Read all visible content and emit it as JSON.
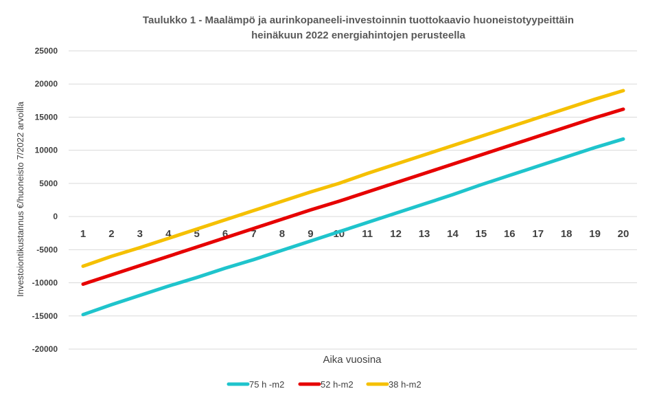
{
  "chart_data": {
    "type": "line",
    "title_line1": "Taulukko 1 - Maalämpö ja aurinkopaneeli-investoinnin tuottokaavio huoneistotyypeittäin",
    "title_line2": "heinäkuun 2022 energiahintojen perusteella",
    "xlabel": "Aika vuosina",
    "ylabel": "Investoiontikustannus €/huoneisto  7/2022 arvoilla",
    "ylim": [
      -20000,
      25000
    ],
    "yticks": [
      25000,
      20000,
      15000,
      10000,
      5000,
      0,
      -5000,
      -10000,
      -15000,
      -20000
    ],
    "x": [
      1,
      2,
      3,
      4,
      5,
      6,
      7,
      8,
      9,
      10,
      11,
      12,
      13,
      14,
      15,
      16,
      17,
      18,
      19,
      20
    ],
    "grid": true,
    "legend_position": "bottom",
    "series": [
      {
        "name": "75 h -m2",
        "color": "#1fc4cc",
        "values": [
          -14800,
          -13300,
          -11900,
          -10500,
          -9200,
          -7800,
          -6500,
          -5100,
          -3700,
          -2300,
          -900,
          500,
          1900,
          3300,
          4800,
          6200,
          7600,
          9000,
          10400,
          11700
        ]
      },
      {
        "name": "52 h-m2",
        "color": "#e60000",
        "values": [
          -10200,
          -8800,
          -7400,
          -6000,
          -4600,
          -3200,
          -1800,
          -400,
          1000,
          2300,
          3700,
          5100,
          6500,
          7900,
          9300,
          10700,
          12100,
          13500,
          14900,
          16200
        ]
      },
      {
        "name": "38 h-m2",
        "color": "#f5c000",
        "values": [
          -7500,
          -6000,
          -4700,
          -3300,
          -1900,
          -500,
          900,
          2300,
          3700,
          5000,
          6500,
          7900,
          9300,
          10700,
          12100,
          13500,
          14900,
          16300,
          17700,
          19000
        ]
      }
    ]
  }
}
